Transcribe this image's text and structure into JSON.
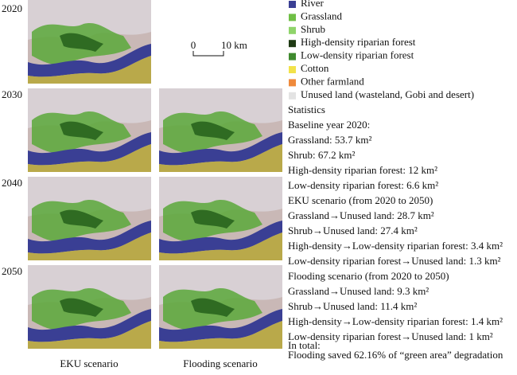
{
  "years": [
    "2020",
    "2030",
    "2040",
    "2050"
  ],
  "columns": [
    "EKU scenario",
    "Flooding scenario"
  ],
  "scale_bar": {
    "start": "0",
    "end": "10 km"
  },
  "legend": [
    {
      "label": "River",
      "color": "#3a3f94"
    },
    {
      "label": "Grassland",
      "color": "#6fbf45"
    },
    {
      "label": "Shrub",
      "color": "#8fd46a"
    },
    {
      "label": "High-density riparian forest",
      "color": "#1f3a14"
    },
    {
      "label": "Low-density riparian forest",
      "color": "#3f8a2e"
    },
    {
      "label": "Cotton",
      "color": "#f2e24a"
    },
    {
      "label": "Other farmland",
      "color": "#ef8a3c"
    },
    {
      "label": "Unused land (wasteland, Gobi and desert)",
      "color": "#e3e3e3"
    }
  ],
  "statistics": {
    "title": "Statistics",
    "sections": [
      {
        "heading": "Baseline year 2020:",
        "lines": [
          "Grassland: 53.7 km²",
          "Shrub: 67.2 km²",
          "High-density riparian forest: 12 km²",
          "Low-density riparian forest: 6.6 km²"
        ]
      },
      {
        "heading": "EKU scenario (from 2020 to 2050)",
        "lines": [
          "Grassland→Unused land: 28.7 km²",
          "Shrub→Unused land: 27.4 km²",
          "High-density→Low-density riparian forest: 3.4 km²",
          "Low-density riparian forest→Unused land: 1.3 km²"
        ]
      },
      {
        "heading": "Flooding scenario (from 2020 to 2050)",
        "lines": [
          "Grassland→Unused land: 9.3 km²",
          "Shrub→Unused land: 11.4 km²",
          "High-density→Low-density riparian forest: 1.4 km²",
          "Low-density riparian forest→Unused land: 1 km²"
        ]
      },
      {
        "heading": "In total:",
        "lines": [
          "Flooding saved 62.16% of  “green area” degradation"
        ]
      }
    ]
  }
}
